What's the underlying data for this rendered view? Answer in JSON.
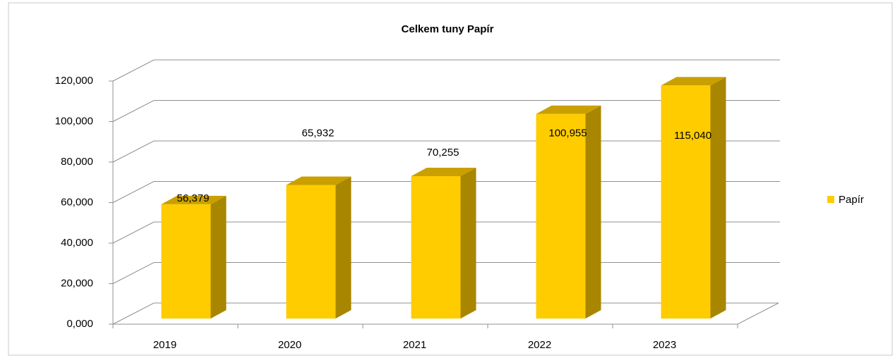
{
  "chart_data": {
    "type": "bar3d",
    "title": "Celkem tuny Papír",
    "categories": [
      "2019",
      "2020",
      "2021",
      "2022",
      "2023"
    ],
    "series": [
      {
        "name": "Papír",
        "color": "#ffcc00",
        "values": [
          56379,
          65932,
          70255,
          100955,
          115040
        ],
        "value_labels": [
          "56,379",
          "65,932",
          "70,255",
          "100,955",
          "115,040"
        ]
      }
    ],
    "ylim": [
      0,
      120000
    ],
    "yticks": [
      {
        "value": 0,
        "label": "0,000"
      },
      {
        "value": 20000,
        "label": "20,000"
      },
      {
        "value": 40000,
        "label": "40,000"
      },
      {
        "value": 60000,
        "label": "60,000"
      },
      {
        "value": 80000,
        "label": "80,000"
      },
      {
        "value": 100000,
        "label": "100,000"
      },
      {
        "value": 120000,
        "label": "120,000"
      }
    ],
    "grid": true,
    "legend": "right"
  }
}
